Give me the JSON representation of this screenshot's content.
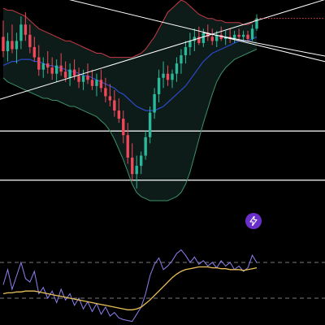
{
  "colors": {
    "background": "#000000",
    "up": "#2bb89a",
    "down": "#f0475a",
    "bb_upper": "#c63a47",
    "bb_lower": "#3c8f67",
    "bb_fill": "#0d1c18",
    "ma": "#2c49c8",
    "rsi": "#8c80f0",
    "rsi_ma": "#e8c05a",
    "rsi_band": "#7a7a7a",
    "hline": "#ffffff",
    "last_price_line": "#e0474f",
    "button": "#6a2fc8"
  },
  "flash_button": {
    "icon": "lightning-bolt-icon"
  },
  "chart_data": [
    {
      "type": "candlestick",
      "grid": false,
      "overlays": [
        "bollinger-bands",
        "moving-average",
        "trendlines",
        "horizontal-levels"
      ],
      "ylim": [
        0,
        100
      ],
      "candles": [
        {
          "o": 82,
          "h": 90,
          "l": 72,
          "c": 75
        },
        {
          "o": 75,
          "h": 84,
          "l": 70,
          "c": 80
        },
        {
          "o": 80,
          "h": 88,
          "l": 74,
          "c": 76
        },
        {
          "o": 76,
          "h": 84,
          "l": 69,
          "c": 80
        },
        {
          "o": 80,
          "h": 92,
          "l": 76,
          "c": 88
        },
        {
          "o": 88,
          "h": 94,
          "l": 80,
          "c": 83
        },
        {
          "o": 83,
          "h": 88,
          "l": 74,
          "c": 77
        },
        {
          "o": 77,
          "h": 82,
          "l": 70,
          "c": 72
        },
        {
          "o": 72,
          "h": 78,
          "l": 63,
          "c": 66
        },
        {
          "o": 66,
          "h": 72,
          "l": 62,
          "c": 69
        },
        {
          "o": 69,
          "h": 75,
          "l": 64,
          "c": 67
        },
        {
          "o": 67,
          "h": 72,
          "l": 61,
          "c": 64
        },
        {
          "o": 64,
          "h": 71,
          "l": 60,
          "c": 68
        },
        {
          "o": 68,
          "h": 74,
          "l": 63,
          "c": 65
        },
        {
          "o": 65,
          "h": 70,
          "l": 60,
          "c": 62
        },
        {
          "o": 62,
          "h": 69,
          "l": 58,
          "c": 66
        },
        {
          "o": 66,
          "h": 71,
          "l": 61,
          "c": 63
        },
        {
          "o": 63,
          "h": 67,
          "l": 57,
          "c": 60
        },
        {
          "o": 60,
          "h": 66,
          "l": 56,
          "c": 63
        },
        {
          "o": 63,
          "h": 69,
          "l": 59,
          "c": 61
        },
        {
          "o": 61,
          "h": 66,
          "l": 56,
          "c": 58
        },
        {
          "o": 58,
          "h": 64,
          "l": 53,
          "c": 61
        },
        {
          "o": 61,
          "h": 66,
          "l": 55,
          "c": 57
        },
        {
          "o": 57,
          "h": 62,
          "l": 50,
          "c": 53
        },
        {
          "o": 53,
          "h": 59,
          "l": 48,
          "c": 51
        },
        {
          "o": 51,
          "h": 56,
          "l": 43,
          "c": 46
        },
        {
          "o": 46,
          "h": 52,
          "l": 40,
          "c": 42
        },
        {
          "o": 42,
          "h": 46,
          "l": 30,
          "c": 34
        },
        {
          "o": 34,
          "h": 40,
          "l": 20,
          "c": 23
        },
        {
          "o": 23,
          "h": 30,
          "l": 12,
          "c": 15
        },
        {
          "o": 15,
          "h": 24,
          "l": 8,
          "c": 19
        },
        {
          "o": 19,
          "h": 26,
          "l": 15,
          "c": 24
        },
        {
          "o": 24,
          "h": 36,
          "l": 22,
          "c": 33
        },
        {
          "o": 33,
          "h": 48,
          "l": 30,
          "c": 45
        },
        {
          "o": 45,
          "h": 57,
          "l": 42,
          "c": 54
        },
        {
          "o": 54,
          "h": 66,
          "l": 50,
          "c": 62
        },
        {
          "o": 62,
          "h": 70,
          "l": 57,
          "c": 64
        },
        {
          "o": 64,
          "h": 68,
          "l": 58,
          "c": 61
        },
        {
          "o": 61,
          "h": 66,
          "l": 57,
          "c": 64
        },
        {
          "o": 64,
          "h": 72,
          "l": 60,
          "c": 69
        },
        {
          "o": 69,
          "h": 76,
          "l": 64,
          "c": 73
        },
        {
          "o": 73,
          "h": 80,
          "l": 69,
          "c": 77
        },
        {
          "o": 77,
          "h": 84,
          "l": 73,
          "c": 80
        },
        {
          "o": 80,
          "h": 86,
          "l": 75,
          "c": 82
        },
        {
          "o": 82,
          "h": 87,
          "l": 78,
          "c": 79
        },
        {
          "o": 79,
          "h": 86,
          "l": 77,
          "c": 84
        },
        {
          "o": 84,
          "h": 88,
          "l": 80,
          "c": 82
        },
        {
          "o": 82,
          "h": 86,
          "l": 78,
          "c": 80
        },
        {
          "o": 80,
          "h": 85,
          "l": 77,
          "c": 83
        },
        {
          "o": 83,
          "h": 87,
          "l": 80,
          "c": 81
        },
        {
          "o": 81,
          "h": 85,
          "l": 78,
          "c": 82
        },
        {
          "o": 82,
          "h": 86,
          "l": 79,
          "c": 81
        },
        {
          "o": 81,
          "h": 85,
          "l": 79,
          "c": 83
        },
        {
          "o": 83,
          "h": 86,
          "l": 80,
          "c": 82
        },
        {
          "o": 82,
          "h": 85,
          "l": 80,
          "c": 83
        },
        {
          "o": 83,
          "h": 85,
          "l": 80,
          "c": 81
        },
        {
          "o": 81,
          "h": 88,
          "l": 80,
          "c": 86
        },
        {
          "o": 86,
          "h": 93,
          "l": 85,
          "c": 91
        }
      ],
      "bb_upper": [
        96,
        95,
        95,
        94,
        93,
        92,
        90,
        88,
        86,
        85,
        84,
        83,
        82,
        81,
        80,
        80,
        79,
        78,
        77,
        76,
        75,
        74,
        74,
        73,
        72,
        72,
        72,
        72,
        72,
        72,
        73,
        74,
        76,
        79,
        82,
        86,
        90,
        94,
        96,
        98,
        100,
        99,
        97,
        95,
        93,
        92,
        91,
        91,
        90,
        90,
        89,
        89,
        89,
        89,
        88,
        88,
        89,
        91
      ],
      "bb_lower": [
        62,
        60,
        59,
        58,
        57,
        56,
        55,
        54,
        53,
        52,
        52,
        51,
        51,
        50,
        49,
        48,
        48,
        47,
        46,
        45,
        44,
        43,
        41,
        39,
        36,
        32,
        27,
        22,
        16,
        10,
        6,
        4,
        3,
        2,
        2,
        2,
        2,
        2,
        3,
        4,
        6,
        10,
        16,
        24,
        32,
        40,
        47,
        54,
        60,
        64,
        67,
        69,
        71,
        72,
        73,
        74,
        75,
        76
      ],
      "ma": [
        68,
        69,
        70,
        70,
        71,
        71,
        71,
        70,
        70,
        69,
        68,
        68,
        67,
        67,
        66,
        65,
        65,
        64,
        63,
        63,
        62,
        61,
        60,
        59,
        58,
        57,
        55,
        54,
        52,
        50,
        48,
        47,
        46,
        46,
        46,
        47,
        48,
        50,
        52,
        54,
        56,
        58,
        61,
        64,
        67,
        70,
        72,
        74,
        75,
        76,
        77,
        78,
        79,
        80,
        80,
        80,
        81,
        82
      ],
      "trendlines": [
        {
          "from": [
            0,
            108
          ],
          "to": [
            57,
            78
          ]
        },
        {
          "from": [
            0,
            52
          ],
          "to": [
            57,
            90
          ]
        },
        {
          "from": [
            45,
            84
          ],
          "to": [
            57,
            79
          ]
        }
      ],
      "horizontal_levels": [
        36,
        12
      ],
      "last_price": 91
    },
    {
      "type": "line",
      "grid": false,
      "ylim": [
        0,
        100
      ],
      "bands": [
        70,
        30
      ],
      "series": [
        {
          "values": [
            45,
            62,
            40,
            55,
            70,
            52,
            48,
            60,
            35,
            42,
            30,
            38,
            25,
            40,
            28,
            35,
            22,
            30,
            18,
            26,
            15,
            24,
            12,
            20,
            10,
            14,
            8,
            6,
            5,
            4,
            12,
            20,
            35,
            55,
            68,
            75,
            62,
            66,
            72,
            80,
            84,
            78,
            70,
            76,
            68,
            72,
            66,
            70,
            64,
            72,
            66,
            70,
            62,
            66,
            60,
            64,
            78,
            70
          ]
        },
        {
          "values": [
            35,
            36,
            36,
            37,
            37,
            38,
            38,
            38,
            37,
            36,
            35,
            34,
            33,
            32,
            31,
            30,
            29,
            28,
            27,
            26,
            25,
            24,
            23,
            22,
            21,
            20,
            19,
            18,
            17,
            17,
            18,
            20,
            24,
            28,
            33,
            38,
            43,
            48,
            53,
            57,
            60,
            62,
            63,
            64,
            65,
            65,
            65,
            64,
            64,
            63,
            63,
            62,
            62,
            62,
            61,
            62,
            63,
            64
          ]
        }
      ]
    }
  ]
}
